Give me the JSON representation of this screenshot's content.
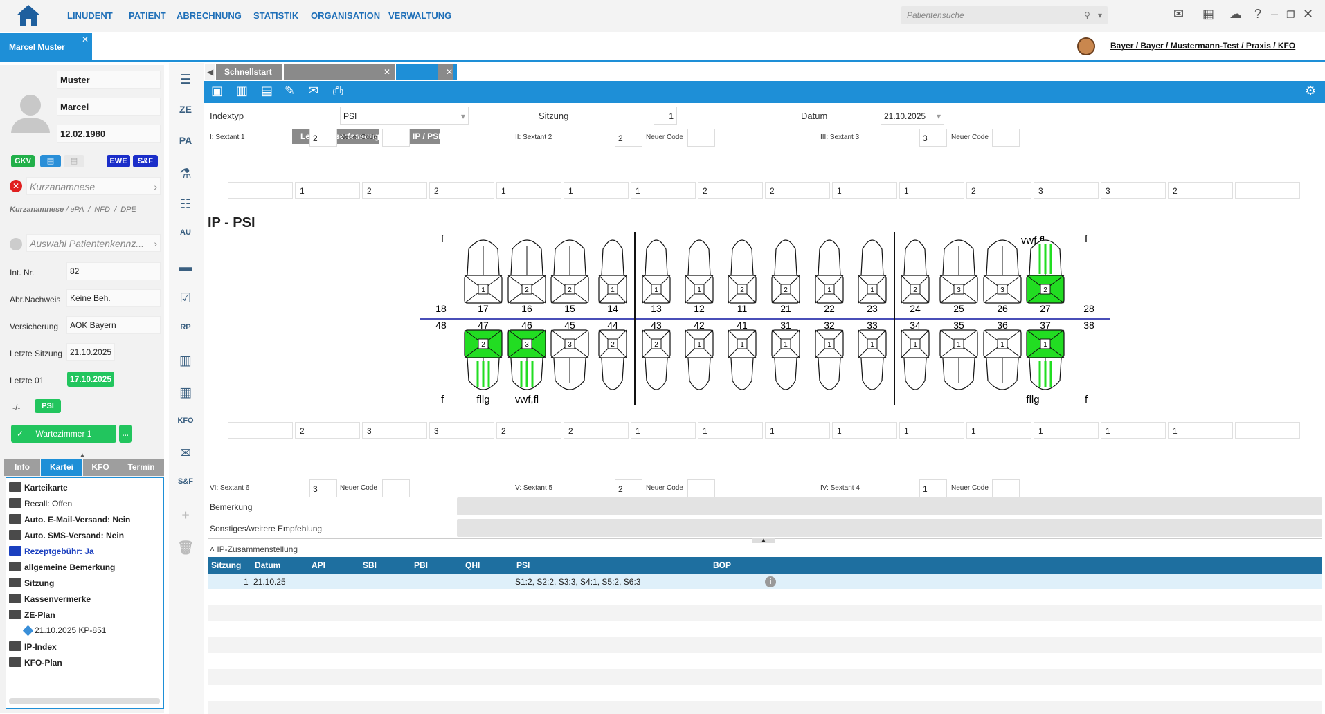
{
  "menu": {
    "items": [
      "LINUDENT",
      "PATIENT",
      "ABRECHNUNG",
      "STATISTIK",
      "ORGANISATION",
      "VERWALTUNG"
    ],
    "search_placeholder": "Patientensuche"
  },
  "patient_tab": "Marcel Muster",
  "practice": "Bayer / Bayer / Mustermann-Test / Praxis / KFO",
  "patient": {
    "lastname": "Muster",
    "firstname": "Marcel",
    "birthdate": "12.02.1980",
    "badges": [
      "GKV",
      "EWE",
      "S&F"
    ],
    "kurzanamnese": "Kurzanamnese",
    "anamnese_links": [
      "Kurzanamnese",
      "ePA",
      "NFD",
      "DPE"
    ],
    "auswahl": "Auswahl Patientenkennz...",
    "fields": [
      {
        "label": "Int. Nr.",
        "value": "82"
      },
      {
        "label": "Abr.Nachweis",
        "value": "Keine Beh."
      },
      {
        "label": "Versicherung",
        "value": "AOK Bayern"
      },
      {
        "label": "Letzte Sitzung",
        "value": "21.10.2025"
      },
      {
        "label": "Letzte 01",
        "value": "17.10.2025"
      }
    ],
    "psi_prefix": "-/-",
    "psi_badge": "PSI",
    "wartezimmer": "Wartezimmer 1",
    "more": "..."
  },
  "left_tabs": [
    "Info",
    "Kartei",
    "KFO",
    "Termin"
  ],
  "tree": [
    {
      "label": "Karteikarte",
      "bold": true
    },
    {
      "label": "Recall: Offen",
      "bold": false
    },
    {
      "label": "Auto. E-Mail-Versand: Nein",
      "bold": true
    },
    {
      "label": "Auto. SMS-Versand: Nein",
      "bold": true
    },
    {
      "label": "Rezeptgebühr: Ja",
      "bold": true,
      "color": "#1a3fbf"
    },
    {
      "label": "allgemeine Bemerkung",
      "bold": true
    },
    {
      "label": "Sitzung",
      "bold": true
    },
    {
      "label": "Kassenvermerke",
      "bold": true
    },
    {
      "label": "ZE-Plan",
      "bold": true
    },
    {
      "label": "21.10.2025 KP-851",
      "bold": false,
      "indent": true
    },
    {
      "label": "IP-Index",
      "bold": true
    },
    {
      "label": "KFO-Plan",
      "bold": true
    }
  ],
  "side_icons": [
    "ZE",
    "PA",
    "AU",
    "RP",
    "KFO",
    "S&F"
  ],
  "doc_tabs": [
    "Schnellstart",
    "Leistungserfassung",
    "IP / PSI"
  ],
  "form": {
    "indextyp_label": "Indextyp",
    "indextyp": "PSI",
    "sitzung_label": "Sitzung",
    "sitzung": "1",
    "datum_label": "Datum",
    "datum": "21.10.2025",
    "sextants_top": [
      {
        "label": "I: Sextant 1",
        "value": "2",
        "code_label": "Neuer Code"
      },
      {
        "label": "II: Sextant 2",
        "value": "2",
        "code_label": "Neuer Code"
      },
      {
        "label": "III: Sextant 3",
        "value": "3",
        "code_label": "Neuer Code"
      }
    ],
    "sextants_bottom": [
      {
        "label": "VI: Sextant 6",
        "value": "3",
        "code_label": "Neuer Code"
      },
      {
        "label": "V: Sextant 5",
        "value": "2",
        "code_label": "Neuer Code"
      },
      {
        "label": "IV: Sextant 4",
        "value": "1",
        "code_label": "Neuer Code"
      }
    ],
    "bemerkung": "Bemerkung",
    "sonstiges": "Sonstiges/weitere Empfehlung"
  },
  "upper_values": [
    "",
    "1",
    "2",
    "2",
    "1",
    "1",
    "1",
    "2",
    "2",
    "1",
    "1",
    "2",
    "3",
    "3",
    "2",
    ""
  ],
  "lower_values": [
    "",
    "2",
    "3",
    "3",
    "2",
    "2",
    "1",
    "1",
    "1",
    "1",
    "1",
    "1",
    "1",
    "1",
    "1",
    ""
  ],
  "chart_title": "IP - PSI",
  "upper_teeth": [
    "18",
    "17",
    "16",
    "15",
    "14",
    "13",
    "12",
    "11",
    "21",
    "22",
    "23",
    "24",
    "25",
    "26",
    "27",
    "28"
  ],
  "lower_teeth": [
    "48",
    "47",
    "46",
    "45",
    "44",
    "43",
    "42",
    "41",
    "31",
    "32",
    "33",
    "34",
    "35",
    "36",
    "37",
    "38"
  ],
  "upper_scores": [
    "",
    "1",
    "2",
    "2",
    "1",
    "1",
    "1",
    "2",
    "2",
    "1",
    "1",
    "2",
    "3",
    "3",
    "2",
    ""
  ],
  "lower_scores": [
    "",
    "2",
    "3",
    "3",
    "2",
    "2",
    "1",
    "1",
    "1",
    "1",
    "1",
    "1",
    "1",
    "1",
    "1",
    ""
  ],
  "upper_green": [
    "27"
  ],
  "lower_green": [
    "47",
    "46",
    "37"
  ],
  "annotations": {
    "f": "f",
    "upper_27": "vwf,fl",
    "lower_47": "fllg",
    "lower_46": "vwf,fl",
    "lower_37": "fllg"
  },
  "zusammenstellung": "IP-Zusammenstellung",
  "grid": {
    "headers": [
      "Sitzung",
      "Datum",
      "API",
      "SBI",
      "PBI",
      "QHI",
      "PSI",
      "BOP"
    ],
    "rows": [
      {
        "sitzung": "1",
        "datum": "21.10.25",
        "psi": "S1:2, S2:2, S3:3, S4:1, S5:2, S6:3"
      }
    ]
  }
}
